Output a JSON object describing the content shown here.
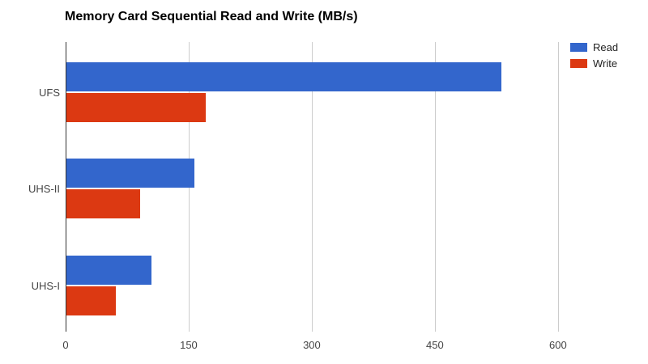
{
  "title": "Memory Card Sequential Read and Write (MB/s)",
  "colors": {
    "read": "#3366CC",
    "write": "#DC3912",
    "gridline": "#CCCCCC",
    "axis": "#333333",
    "tick_label": "#444444",
    "category_label": "#444444",
    "background": "#FFFFFF"
  },
  "legend": {
    "items": [
      {
        "label": "Read",
        "color": "#3366CC"
      },
      {
        "label": "Write",
        "color": "#DC3912"
      }
    ]
  },
  "chart_data": {
    "type": "bar",
    "orientation": "horizontal",
    "title": "Memory Card Sequential Read and Write (MB/s)",
    "categories": [
      "UFS",
      "UHS-II",
      "UHS-I"
    ],
    "series": [
      {
        "name": "Read",
        "color": "#3366CC",
        "values": [
          530,
          156,
          104
        ]
      },
      {
        "name": "Write",
        "color": "#DC3912",
        "values": [
          170,
          90,
          60
        ]
      }
    ],
    "xlabel": "",
    "ylabel": "",
    "x_ticks": [
      0,
      150,
      300,
      450,
      600
    ],
    "xlim": [
      0,
      611
    ],
    "grid": true,
    "legend_position": "right"
  }
}
